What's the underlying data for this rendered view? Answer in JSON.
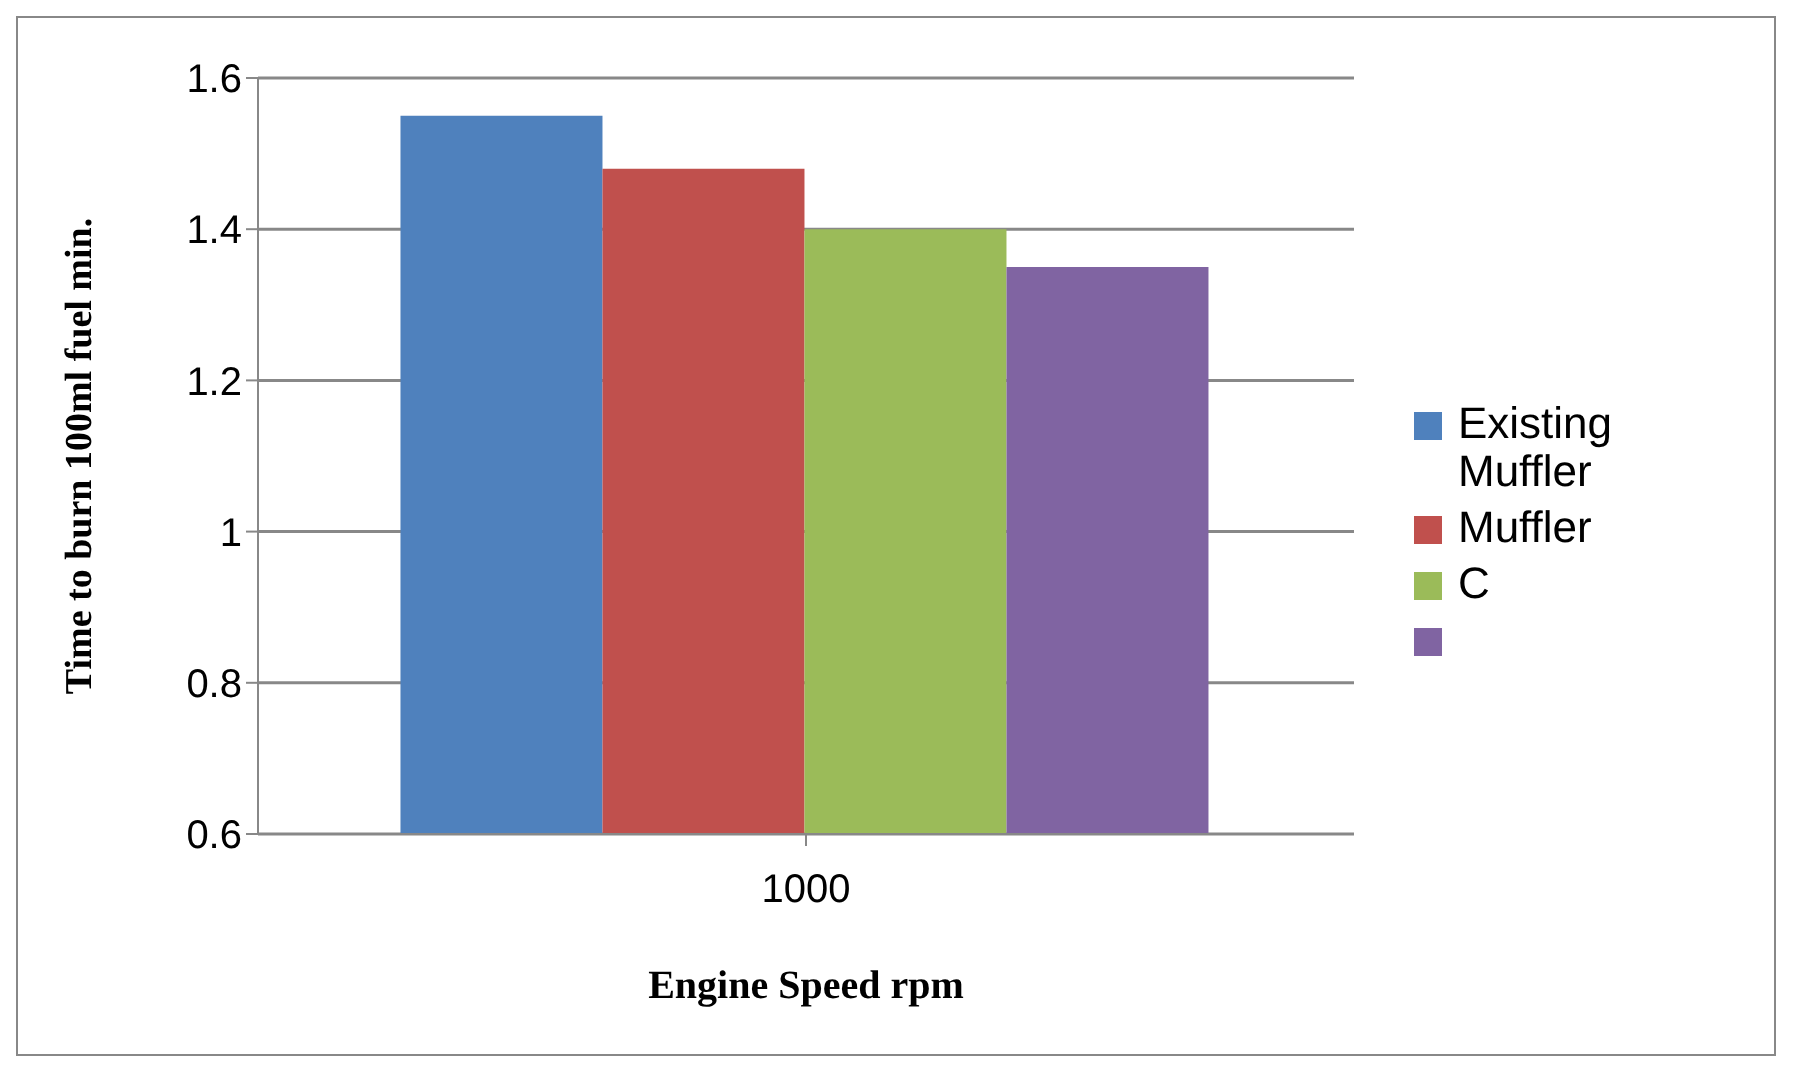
{
  "chart_data": {
    "type": "bar",
    "xlabel": "Engine Speed rpm",
    "ylabel": "Time to burn 100ml fuel min.",
    "categories": [
      "1000"
    ],
    "series": [
      {
        "name": "Existing Muffler",
        "color": "#4f81bd",
        "values": [
          1.55
        ]
      },
      {
        "name": "Muffler",
        "color": "#c0504d",
        "values": [
          1.48
        ]
      },
      {
        "name": "C",
        "color": "#9bbb59",
        "values": [
          1.4
        ]
      },
      {
        "color": "#8064a2",
        "values": [
          1.35
        ]
      }
    ],
    "ylim": [
      0.6,
      1.6
    ],
    "yticks": [
      0.6,
      0.8,
      1,
      1.2,
      1.4,
      1.6
    ],
    "grid": "y",
    "legend": "right"
  }
}
